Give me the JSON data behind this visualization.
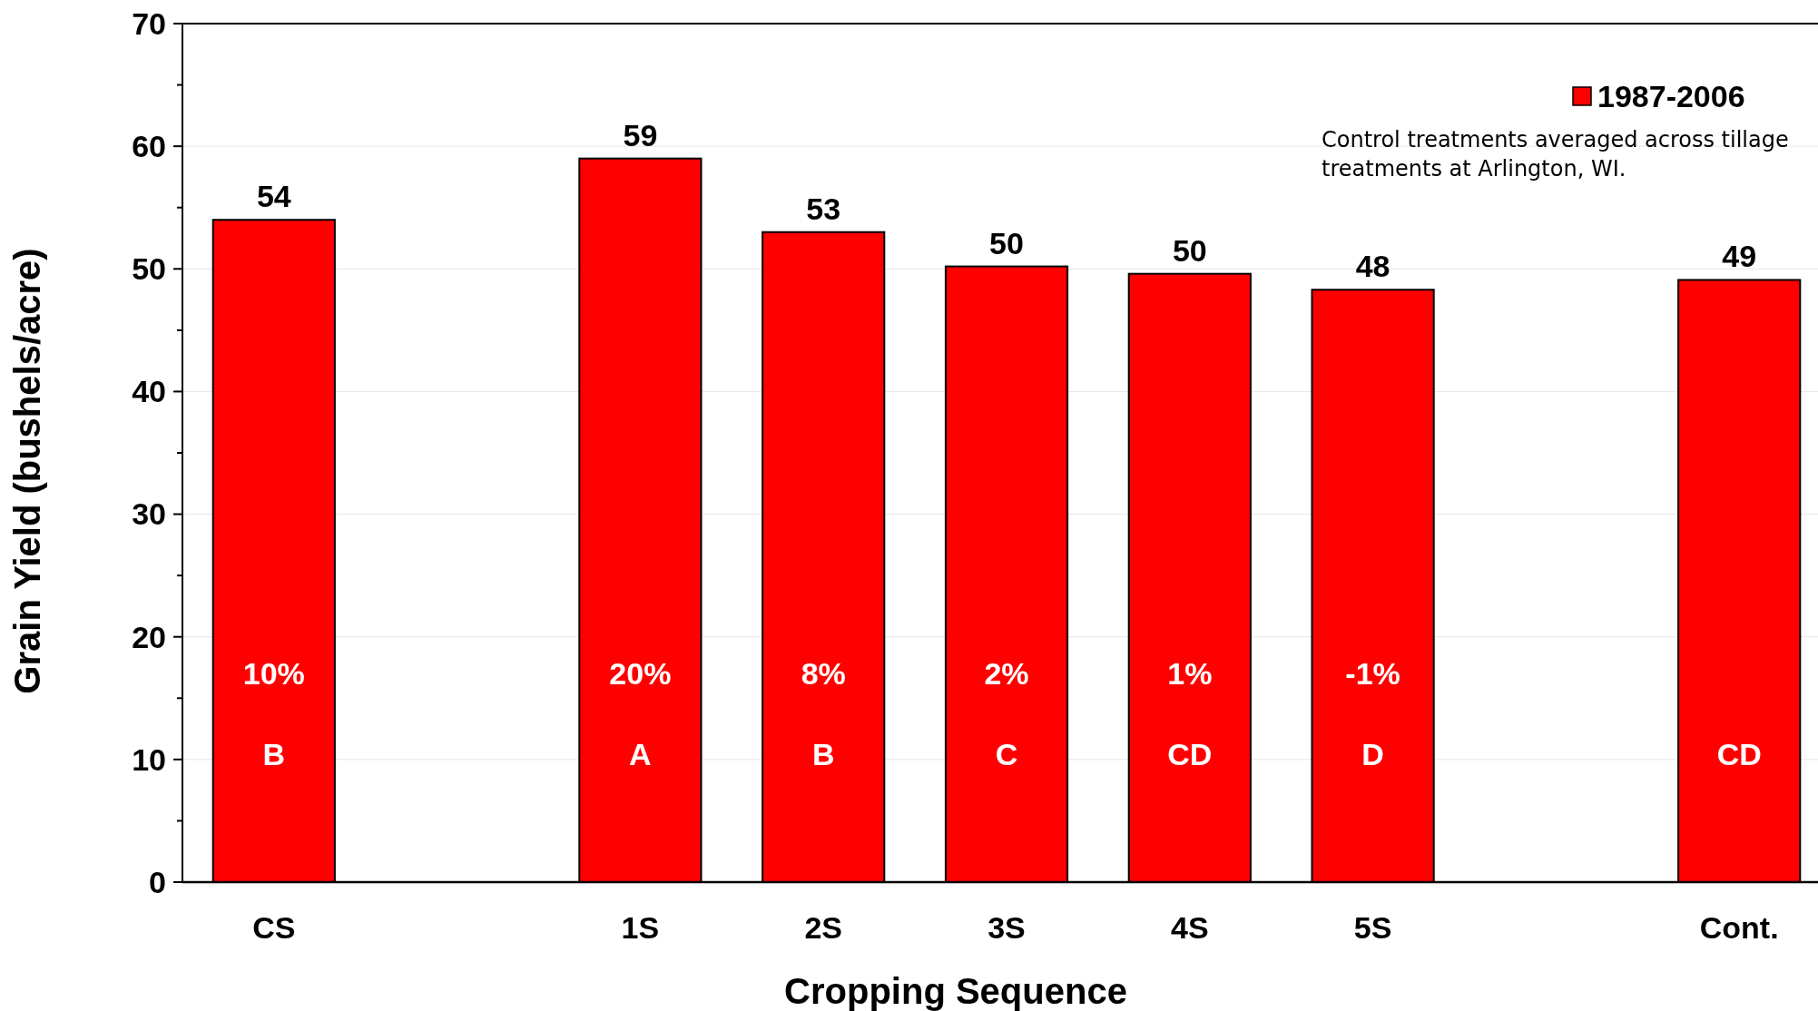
{
  "chart_data": {
    "type": "bar",
    "xlabel": "Cropping Sequence",
    "ylabel": "Grain Yield (bushels/acre)",
    "categories": [
      "CS",
      null,
      "1S",
      "2S",
      "3S",
      "4S",
      "5S",
      null,
      "Cont."
    ],
    "series": [
      {
        "name": "1987-2006",
        "color": "#ff0000",
        "values": [
          54,
          null,
          59,
          53,
          50.2,
          49.6,
          48.3,
          null,
          49.1
        ],
        "value_labels": [
          "54",
          null,
          "59",
          "53",
          "50",
          "50",
          "48",
          null,
          "49"
        ]
      }
    ],
    "ylim": [
      0,
      70
    ],
    "yticks": [
      0,
      {
        "value": 5,
        "label": null
      },
      10,
      {
        "value": 15,
        "label": null
      },
      20,
      {
        "value": 25,
        "label": null
      },
      30,
      {
        "value": 35,
        "label": null
      },
      40,
      {
        "value": 45,
        "label": null
      },
      50,
      {
        "value": 55,
        "label": null
      },
      60,
      {
        "value": 65,
        "label": null
      },
      70
    ],
    "grid": "y",
    "legend": "top right",
    "annotations": [
      "10%",
      "B",
      "20%",
      "A",
      "8%",
      "B",
      "2%",
      "C",
      "1%",
      "CD",
      "-1%",
      "D",
      "CD",
      "Control treatments averaged across tillage treatments at Arlington, WI."
    ]
  }
}
